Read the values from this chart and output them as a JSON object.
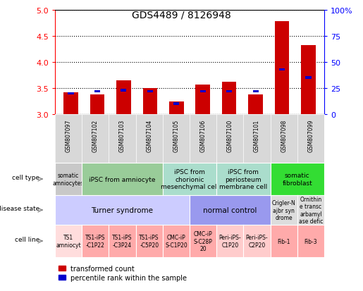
{
  "title": "GDS4489 / 8126948",
  "samples": [
    "GSM807097",
    "GSM807102",
    "GSM807103",
    "GSM807104",
    "GSM807105",
    "GSM807106",
    "GSM807100",
    "GSM807101",
    "GSM807098",
    "GSM807099"
  ],
  "transformed_counts": [
    3.42,
    3.38,
    3.65,
    3.5,
    3.25,
    3.57,
    3.62,
    3.38,
    4.79,
    4.33
  ],
  "percentile_ranks": [
    20,
    22,
    23,
    22,
    10,
    22,
    22,
    22,
    43,
    35
  ],
  "ylim": [
    3.0,
    5.0
  ],
  "yticks": [
    3.0,
    3.5,
    4.0,
    4.5,
    5.0
  ],
  "y2ticks": [
    0,
    25,
    50,
    75,
    100
  ],
  "bar_color": "#cc0000",
  "pct_color": "#0000cc",
  "cell_type_row": {
    "groups": [
      {
        "label": "somatic\namniocytes",
        "span": [
          0,
          1
        ],
        "color": "#c8c8c8"
      },
      {
        "label": "iPSC from amniocyte",
        "span": [
          1,
          4
        ],
        "color": "#99cc99"
      },
      {
        "label": "iPSC from\nchorionic\nmesenchymal cell",
        "span": [
          4,
          6
        ],
        "color": "#aaddcc"
      },
      {
        "label": "iPSC from\nperiosteum\nmembrane cell",
        "span": [
          6,
          8
        ],
        "color": "#aaddcc"
      },
      {
        "label": "somatic\nfibroblast",
        "span": [
          8,
          10
        ],
        "color": "#33dd33"
      }
    ]
  },
  "disease_state_row": {
    "groups": [
      {
        "label": "Turner syndrome",
        "span": [
          0,
          5
        ],
        "color": "#ccccff"
      },
      {
        "label": "normal control",
        "span": [
          5,
          8
        ],
        "color": "#9999ee"
      },
      {
        "label": "Crigler-N\najbr syn\ndrome",
        "span": [
          8,
          9
        ],
        "color": "#dddddd"
      },
      {
        "label": "Ornithin\ne transc\narbamyl\nase defic",
        "span": [
          9,
          10
        ],
        "color": "#dddddd"
      }
    ]
  },
  "cell_line_row": {
    "groups": [
      {
        "label": "TS1\namniocyt",
        "span": [
          0,
          1
        ],
        "color": "#ffdddd"
      },
      {
        "label": "TS1-iPS\n-C1P22",
        "span": [
          1,
          2
        ],
        "color": "#ffaaaa"
      },
      {
        "label": "TS1-iPS\n-C3P24",
        "span": [
          2,
          3
        ],
        "color": "#ffaaaa"
      },
      {
        "label": "TS1-iPS\n-C5P20",
        "span": [
          3,
          4
        ],
        "color": "#ffaaaa"
      },
      {
        "label": "CMC-iP\nS-C1P20",
        "span": [
          4,
          5
        ],
        "color": "#ffaaaa"
      },
      {
        "label": "CMC-iP\nS-C28P\n20",
        "span": [
          5,
          6
        ],
        "color": "#ffaaaa"
      },
      {
        "label": "Peri-iPS-\nC1P20",
        "span": [
          6,
          7
        ],
        "color": "#ffcccc"
      },
      {
        "label": "Peri-iPS-\nC2P20",
        "span": [
          7,
          8
        ],
        "color": "#ffcccc"
      },
      {
        "label": "Fib-1",
        "span": [
          8,
          9
        ],
        "color": "#ffaaaa"
      },
      {
        "label": "Fib-3",
        "span": [
          9,
          10
        ],
        "color": "#ffaaaa"
      }
    ]
  },
  "fig_width": 5.15,
  "fig_height": 4.14,
  "dpi": 100
}
